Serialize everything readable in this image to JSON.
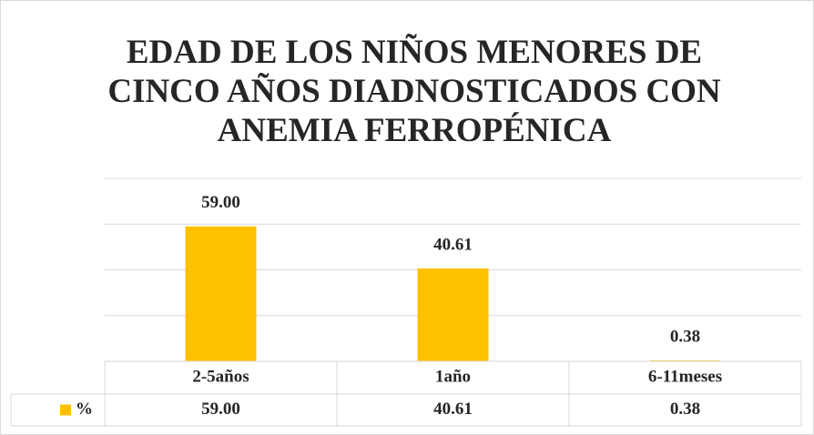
{
  "chart_data": {
    "type": "bar",
    "title": "EDAD DE LOS NIÑOS MENORES DE CINCO AÑOS DIADNOSTICADOS CON ANEMIA FERROPÉNICA",
    "categories": [
      "2-5años",
      "1año",
      "6-11meses"
    ],
    "series": [
      {
        "name": "%",
        "color": "#ffc000",
        "values": [
          59.0,
          40.61,
          0.38
        ],
        "value_labels": [
          "59.00",
          "40.61",
          "0.38"
        ]
      }
    ],
    "ylim": [
      0,
      80
    ],
    "yticks": [
      0,
      20,
      40,
      60,
      80
    ],
    "grid": true,
    "data_table": true
  }
}
